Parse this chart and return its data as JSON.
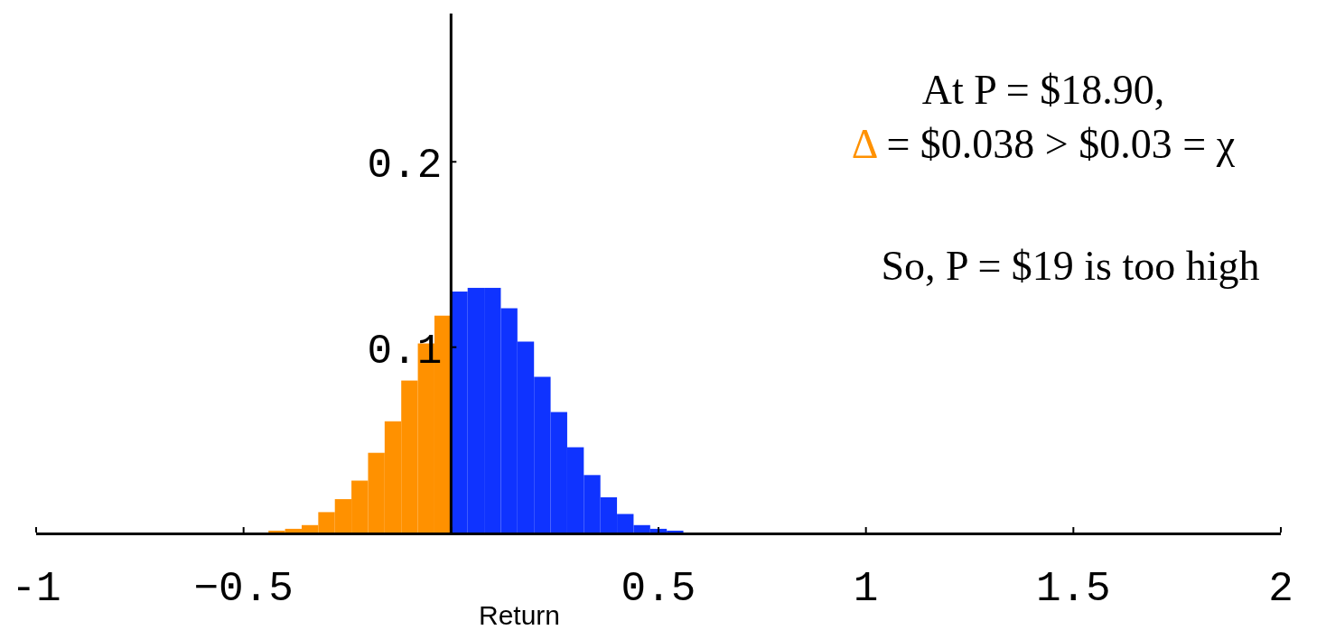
{
  "chart_data": {
    "type": "histogram",
    "xlabel": "Return",
    "bins": [
      -0.44,
      -0.4,
      -0.36,
      -0.32,
      -0.28,
      -0.24,
      -0.2,
      -0.16,
      -0.12,
      -0.08,
      -0.04,
      0,
      0.04,
      0.08,
      0.12,
      0.16,
      0.2,
      0.24,
      0.28,
      0.32,
      0.36,
      0.4,
      0.44,
      0.48,
      0.52,
      0.56
    ],
    "values": [
      0.001,
      0.002,
      0.004,
      0.011,
      0.018,
      0.028,
      0.043,
      0.06,
      0.082,
      0.102,
      0.117,
      0.13,
      0.132,
      0.132,
      0.121,
      0.103,
      0.084,
      0.065,
      0.046,
      0.031,
      0.019,
      0.01,
      0.004,
      0.002,
      0.001
    ],
    "colors": [
      "#ff9100",
      "#ff9100",
      "#ff9100",
      "#ff9100",
      "#ff9100",
      "#ff9100",
      "#ff9100",
      "#ff9100",
      "#ff9100",
      "#ff9100",
      "#ff9100",
      "#0f33ff",
      "#0f33ff",
      "#0f33ff",
      "#0f33ff",
      "#0f33ff",
      "#0f33ff",
      "#0f33ff",
      "#0f33ff",
      "#0f33ff",
      "#0f33ff",
      "#0f33ff",
      "#0f33ff",
      "#0f33ff",
      "#0f33ff"
    ],
    "xlim": [
      -1,
      2
    ],
    "ylim": [
      0,
      0.28
    ],
    "xticks": [
      -1,
      {
        "value": -0.5,
        "label": "−0.5"
      },
      {
        "value": 0,
        "label": null
      },
      0.5,
      1,
      1.5,
      2
    ],
    "yticks": [
      0.1,
      0.2
    ],
    "annotations": [
      "At P = $18.90,",
      "Δ = $0.038 > $0.03 = χ",
      "So, P = $19 is too high"
    ],
    "grid": false
  }
}
